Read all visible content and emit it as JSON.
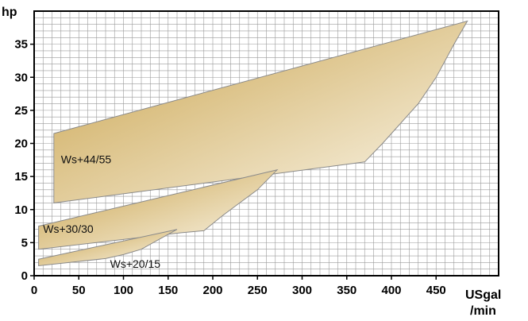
{
  "chart_data": {
    "type": "area",
    "title": "",
    "ylabel": "hp",
    "xlabel": [
      "USgal",
      "/min"
    ],
    "xlim": [
      0,
      520
    ],
    "ylim": [
      0,
      40
    ],
    "x_ticks": [
      0,
      50,
      100,
      150,
      200,
      250,
      300,
      350,
      400,
      450
    ],
    "y_ticks": [
      0,
      5,
      10,
      15,
      20,
      25,
      30,
      35
    ],
    "grid": true,
    "colors": {
      "fill_dark": "#c9a24a",
      "fill_light": "#fbf7ec",
      "outline": "#8a8a8a",
      "grid": "#9a9a9a",
      "axis": "#000000"
    },
    "series": [
      {
        "name": "Ws+44/55",
        "label_pos": {
          "x": 30,
          "y": 17
        },
        "polygon": [
          [
            22,
            21.5
          ],
          [
            485,
            38.5
          ],
          [
            470,
            35
          ],
          [
            450,
            30
          ],
          [
            430,
            26
          ],
          [
            410,
            23
          ],
          [
            390,
            20
          ],
          [
            370,
            17.2
          ],
          [
            22,
            11
          ]
        ]
      },
      {
        "name": "Ws+30/30",
        "label_pos": {
          "x": 10,
          "y": 6.5
        },
        "polygon": [
          [
            5,
            7.5
          ],
          [
            272,
            16
          ],
          [
            250,
            13
          ],
          [
            230,
            11
          ],
          [
            210,
            9
          ],
          [
            190,
            6.8
          ],
          [
            165,
            6.5
          ],
          [
            5,
            4
          ]
        ]
      },
      {
        "name": "Ws+20/15",
        "label_pos": {
          "x": 85,
          "y": 1.2
        },
        "polygon": [
          [
            5,
            2.5
          ],
          [
            160,
            7
          ],
          [
            140,
            5.5
          ],
          [
            120,
            4
          ],
          [
            100,
            3.2
          ],
          [
            80,
            2.6
          ],
          [
            5,
            1.5
          ]
        ]
      }
    ]
  }
}
